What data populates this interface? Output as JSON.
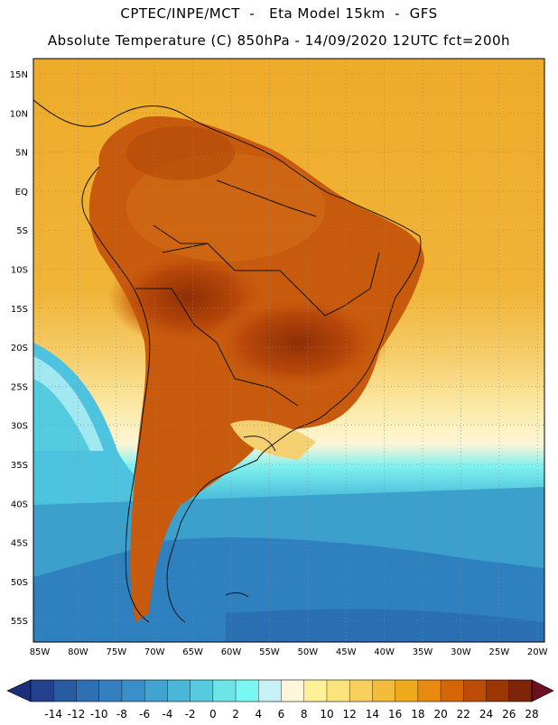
{
  "header": {
    "line1": "CPTEC/INPE/MCT  -   Eta Model 15km  -  GFS",
    "line2": "Absolute Temperature (C) 850hPa - 14/09/2020 12UTC fct=200h"
  },
  "map": {
    "region": "South America",
    "lat_labels": [
      "15N",
      "10N",
      "5N",
      "EQ",
      "5S",
      "10S",
      "15S",
      "20S",
      "25S",
      "30S",
      "35S",
      "40S",
      "45S",
      "50S",
      "55S"
    ],
    "lon_labels": [
      "85W",
      "80W",
      "75W",
      "70W",
      "65W",
      "60W",
      "55W",
      "50W",
      "45W",
      "40W",
      "35W",
      "30W",
      "25W",
      "20W"
    ],
    "grid": true
  },
  "colorbar": {
    "labels": [
      "-14",
      "-12",
      "-10",
      "-8",
      "-6",
      "-4",
      "-2",
      "0",
      "2",
      "4",
      "6",
      "8",
      "10",
      "12",
      "14",
      "16",
      "18",
      "20",
      "22",
      "24",
      "26",
      "28"
    ],
    "colors": [
      "#23418c",
      "#2a5aa0",
      "#2f6fb3",
      "#357fbf",
      "#3b8fc8",
      "#43a3cf",
      "#4ab6d8",
      "#55cbe0",
      "#6ee3e8",
      "#7af7f2",
      "#c8f1f6",
      "#fff6dc",
      "#fff199",
      "#fbe47c",
      "#f7d05c",
      "#f3bc3a",
      "#efaa1b",
      "#e88a10",
      "#d66506",
      "#bd4d05",
      "#9c3605",
      "#7e2409"
    ],
    "left_arrow_color": "#1b2f7a",
    "right_arrow_color": "#6b1020"
  }
}
